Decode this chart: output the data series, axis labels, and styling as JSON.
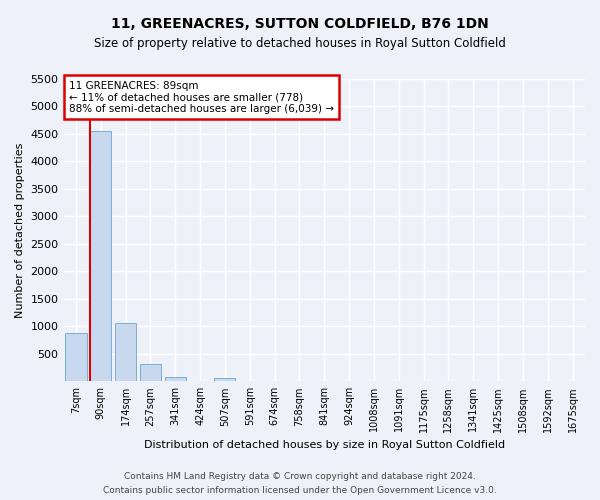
{
  "title_line1": "11, GREENACRES, SUTTON COLDFIELD, B76 1DN",
  "title_line2": "Size of property relative to detached houses in Royal Sutton Coldfield",
  "xlabel": "Distribution of detached houses by size in Royal Sutton Coldfield",
  "ylabel": "Number of detached properties",
  "footnote1": "Contains HM Land Registry data © Crown copyright and database right 2024.",
  "footnote2": "Contains public sector information licensed under the Open Government Licence v3.0.",
  "annotation_line1": "11 GREENACRES: 89sqm",
  "annotation_line2": "← 11% of detached houses are smaller (778)",
  "annotation_line3": "88% of semi-detached houses are larger (6,039) →",
  "bar_labels": [
    "7sqm",
    "90sqm",
    "174sqm",
    "257sqm",
    "341sqm",
    "424sqm",
    "507sqm",
    "591sqm",
    "674sqm",
    "758sqm",
    "841sqm",
    "924sqm",
    "1008sqm",
    "1091sqm",
    "1175sqm",
    "1258sqm",
    "1341sqm",
    "1425sqm",
    "1508sqm",
    "1592sqm",
    "1675sqm"
  ],
  "bar_values": [
    880,
    4560,
    1060,
    320,
    70,
    0,
    60,
    0,
    0,
    0,
    0,
    0,
    0,
    0,
    0,
    0,
    0,
    0,
    0,
    0,
    0
  ],
  "bar_color": "#c8d8ee",
  "bar_edge_color": "#7aaed4",
  "marker_bar_index": 1,
  "marker_color": "#dd0000",
  "ylim": [
    0,
    5500
  ],
  "yticks": [
    0,
    500,
    1000,
    1500,
    2000,
    2500,
    3000,
    3500,
    4000,
    4500,
    5000,
    5500
  ],
  "bg_color": "#eef2f8",
  "plot_bg_color": "#eef2f8",
  "grid_color": "#ffffff",
  "annotation_box_color": "#dd0000"
}
